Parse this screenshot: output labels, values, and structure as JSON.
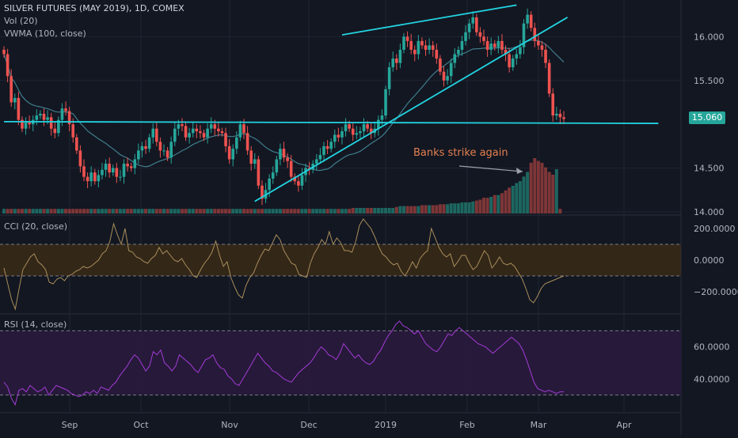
{
  "header": {
    "title": "SILVER FUTURES (MAY 2019), 1D, COMEX",
    "vol_label": "Vol (20)",
    "vwma_label": "VWMA (100, close)",
    "cci_label": "CCI (20, close)",
    "rsi_label": "RSI (14, close)"
  },
  "colors": {
    "background": "#131722",
    "up": "#26a69a",
    "down": "#ef5350",
    "trendline": "#22d3e0",
    "vwma": "#3f7d8c",
    "cci_line": "#a98e5a",
    "cci_band": "#3a2a16",
    "rsi_line": "#a33cd6",
    "rsi_band": "#2a1a3d",
    "annotation": "#e5804f",
    "price_badge": "#26a69a",
    "grid": "#1f2433",
    "axis_text": "#b2b5be"
  },
  "annotation": {
    "text": "Banks strike again"
  },
  "price_badge": {
    "value": "15.060"
  },
  "chart_data": [
    {
      "type": "candlestick",
      "title": "SILVER FUTURES (MAY 2019), 1D, COMEX",
      "ylim": [
        14.0,
        16.4
      ],
      "y_ticks": [
        {
          "value": 16.0,
          "label": "16.000"
        },
        {
          "value": 15.5,
          "label": "15.500"
        },
        {
          "value": 14.5,
          "label": "14.500"
        },
        {
          "value": 14.0,
          "label": "14.000"
        }
      ],
      "x_ticks": [
        "Sep",
        "Oct",
        "Nov",
        "Dec",
        "2019",
        "Feb",
        "Mar",
        "Apr"
      ],
      "last_price": 15.06,
      "series_close": [
        15.8,
        15.55,
        15.25,
        15.3,
        15.05,
        14.95,
        15.02,
        15.0,
        15.05,
        15.1,
        15.12,
        15.05,
        15.08,
        14.95,
        14.9,
        15.05,
        15.18,
        15.15,
        15.0,
        14.85,
        14.7,
        14.52,
        14.4,
        14.35,
        14.45,
        14.35,
        14.42,
        14.48,
        14.55,
        14.45,
        14.5,
        14.4,
        14.4,
        14.55,
        14.52,
        14.5,
        14.6,
        14.7,
        14.75,
        14.72,
        14.85,
        14.95,
        14.8,
        14.7,
        14.7,
        14.62,
        14.8,
        14.95,
        15.0,
        14.98,
        14.85,
        14.9,
        14.95,
        14.92,
        14.9,
        14.85,
        14.95,
        15.0,
        14.95,
        14.92,
        14.9,
        14.75,
        14.6,
        14.72,
        14.85,
        15.0,
        14.9,
        14.7,
        14.55,
        14.6,
        14.3,
        14.15,
        14.25,
        14.38,
        14.45,
        14.6,
        14.72,
        14.62,
        14.58,
        14.4,
        14.35,
        14.3,
        14.42,
        14.5,
        14.48,
        14.55,
        14.6,
        14.65,
        14.75,
        14.72,
        14.8,
        14.88,
        14.85,
        14.92,
        15.0,
        14.95,
        14.88,
        14.9,
        14.92,
        15.0,
        14.95,
        14.9,
        14.95,
        15.05,
        15.1,
        15.4,
        15.65,
        15.75,
        15.7,
        15.85,
        16.0,
        15.95,
        15.85,
        15.8,
        15.95,
        15.9,
        15.85,
        15.9,
        15.85,
        15.75,
        15.6,
        15.5,
        15.55,
        15.7,
        15.8,
        15.85,
        15.95,
        16.05,
        16.15,
        16.22,
        16.05,
        16.0,
        15.95,
        15.85,
        15.92,
        15.88,
        15.95,
        15.85,
        15.8,
        15.65,
        15.75,
        15.8,
        15.88,
        16.15,
        16.25,
        16.1,
        15.95,
        15.9,
        15.85,
        15.7,
        15.35,
        15.1,
        15.12,
        15.08,
        15.06
      ],
      "volume_scale": "relative",
      "volume": [
        0.05,
        0.05,
        0.05,
        0.05,
        0.05,
        0.05,
        0.05,
        0.05,
        0.05,
        0.05,
        0.05,
        0.05,
        0.05,
        0.05,
        0.05,
        0.05,
        0.05,
        0.05,
        0.05,
        0.05,
        0.05,
        0.05,
        0.05,
        0.05,
        0.05,
        0.05,
        0.05,
        0.05,
        0.05,
        0.05,
        0.05,
        0.05,
        0.05,
        0.05,
        0.05,
        0.05,
        0.05,
        0.05,
        0.05,
        0.05,
        0.05,
        0.05,
        0.05,
        0.05,
        0.05,
        0.05,
        0.05,
        0.05,
        0.05,
        0.05,
        0.05,
        0.05,
        0.05,
        0.05,
        0.05,
        0.05,
        0.05,
        0.05,
        0.05,
        0.05,
        0.05,
        0.05,
        0.05,
        0.05,
        0.05,
        0.05,
        0.05,
        0.05,
        0.05,
        0.05,
        0.05,
        0.05,
        0.05,
        0.05,
        0.05,
        0.05,
        0.05,
        0.05,
        0.05,
        0.05,
        0.05,
        0.05,
        0.05,
        0.05,
        0.05,
        0.05,
        0.05,
        0.05,
        0.05,
        0.05,
        0.05,
        0.05,
        0.05,
        0.05,
        0.05,
        0.05,
        0.06,
        0.06,
        0.06,
        0.06,
        0.06,
        0.06,
        0.06,
        0.06,
        0.06,
        0.06,
        0.06,
        0.06,
        0.07,
        0.08,
        0.08,
        0.08,
        0.08,
        0.08,
        0.08,
        0.09,
        0.09,
        0.09,
        0.09,
        0.09,
        0.1,
        0.1,
        0.1,
        0.11,
        0.11,
        0.11,
        0.12,
        0.12,
        0.12,
        0.13,
        0.14,
        0.15,
        0.17,
        0.17,
        0.18,
        0.2,
        0.2,
        0.22,
        0.25,
        0.28,
        0.3,
        0.33,
        0.35,
        0.4,
        0.45,
        0.55,
        0.6,
        0.57,
        0.55,
        0.5,
        0.45,
        0.42,
        0.48,
        0.05
      ]
    },
    {
      "type": "line",
      "name": "CCI (20, close)",
      "ylim": [
        -330,
        270
      ],
      "y_ticks": [
        {
          "value": 200,
          "label": "200.0000"
        },
        {
          "value": 0,
          "label": "0.0000"
        },
        {
          "value": -200,
          "label": "−200.0000"
        }
      ],
      "band": [
        -100,
        100
      ],
      "values": [
        -50,
        -150,
        -250,
        -310,
        -180,
        -60,
        -20,
        20,
        40,
        -10,
        -30,
        -60,
        -140,
        -150,
        -120,
        -110,
        -130,
        -100,
        -90,
        -70,
        -60,
        -40,
        -50,
        -40,
        -20,
        0,
        40,
        60,
        120,
        230,
        160,
        100,
        200,
        60,
        50,
        20,
        10,
        -10,
        -20,
        10,
        30,
        80,
        40,
        60,
        30,
        0,
        -10,
        10,
        -30,
        -60,
        -100,
        -110,
        -60,
        -20,
        10,
        50,
        120,
        30,
        -40,
        -10,
        -110,
        -170,
        -220,
        -240,
        -160,
        -110,
        -80,
        -20,
        30,
        70,
        60,
        110,
        160,
        130,
        60,
        20,
        -20,
        -30,
        -90,
        -100,
        -110,
        -20,
        40,
        80,
        130,
        100,
        180,
        100,
        140,
        110,
        60,
        60,
        50,
        120,
        220,
        260,
        230,
        200,
        150,
        90,
        40,
        20,
        -10,
        -30,
        -20,
        -70,
        -100,
        -60,
        -10,
        -50,
        10,
        40,
        60,
        200,
        140,
        80,
        40,
        20,
        40,
        -40,
        -10,
        30,
        30,
        -20,
        -60,
        -40,
        10,
        60,
        30,
        -50,
        -20,
        20,
        -20,
        -30,
        -20,
        -40,
        -80,
        -120,
        -180,
        -250,
        -270,
        -230,
        -180,
        -150,
        -140,
        -130,
        -120,
        -110,
        -100
      ]
    },
    {
      "type": "line",
      "name": "RSI (14, close)",
      "ylim": [
        20,
        80
      ],
      "y_ticks": [
        {
          "value": 60,
          "label": "60.0000"
        },
        {
          "value": 40,
          "label": "40.0000"
        }
      ],
      "band": [
        30,
        70
      ],
      "values": [
        38,
        35,
        28,
        24,
        33,
        34,
        32,
        36,
        34,
        32,
        33,
        35,
        30,
        33,
        36,
        35,
        34,
        33,
        31,
        30,
        29,
        30,
        32,
        31,
        33,
        31,
        35,
        34,
        33,
        36,
        38,
        42,
        45,
        48,
        52,
        55,
        53,
        49,
        45,
        48,
        57,
        55,
        58,
        50,
        48,
        45,
        48,
        55,
        53,
        51,
        49,
        46,
        44,
        48,
        52,
        53,
        55,
        50,
        47,
        46,
        42,
        40,
        37,
        36,
        40,
        44,
        48,
        52,
        56,
        53,
        50,
        48,
        45,
        44,
        42,
        40,
        39,
        38,
        41,
        44,
        46,
        48,
        50,
        53,
        57,
        60,
        58,
        55,
        54,
        52,
        56,
        62,
        59,
        56,
        53,
        55,
        52,
        50,
        49,
        51,
        55,
        58,
        63,
        67,
        70,
        74,
        76,
        73,
        72,
        70,
        68,
        70,
        66,
        62,
        60,
        58,
        57,
        60,
        64,
        68,
        67,
        70,
        72,
        70,
        68,
        66,
        64,
        62,
        61,
        60,
        58,
        56,
        58,
        60,
        62,
        64,
        66,
        64,
        62,
        58,
        52,
        45,
        38,
        34,
        33,
        32,
        33,
        32,
        31,
        32,
        32
      ]
    }
  ]
}
